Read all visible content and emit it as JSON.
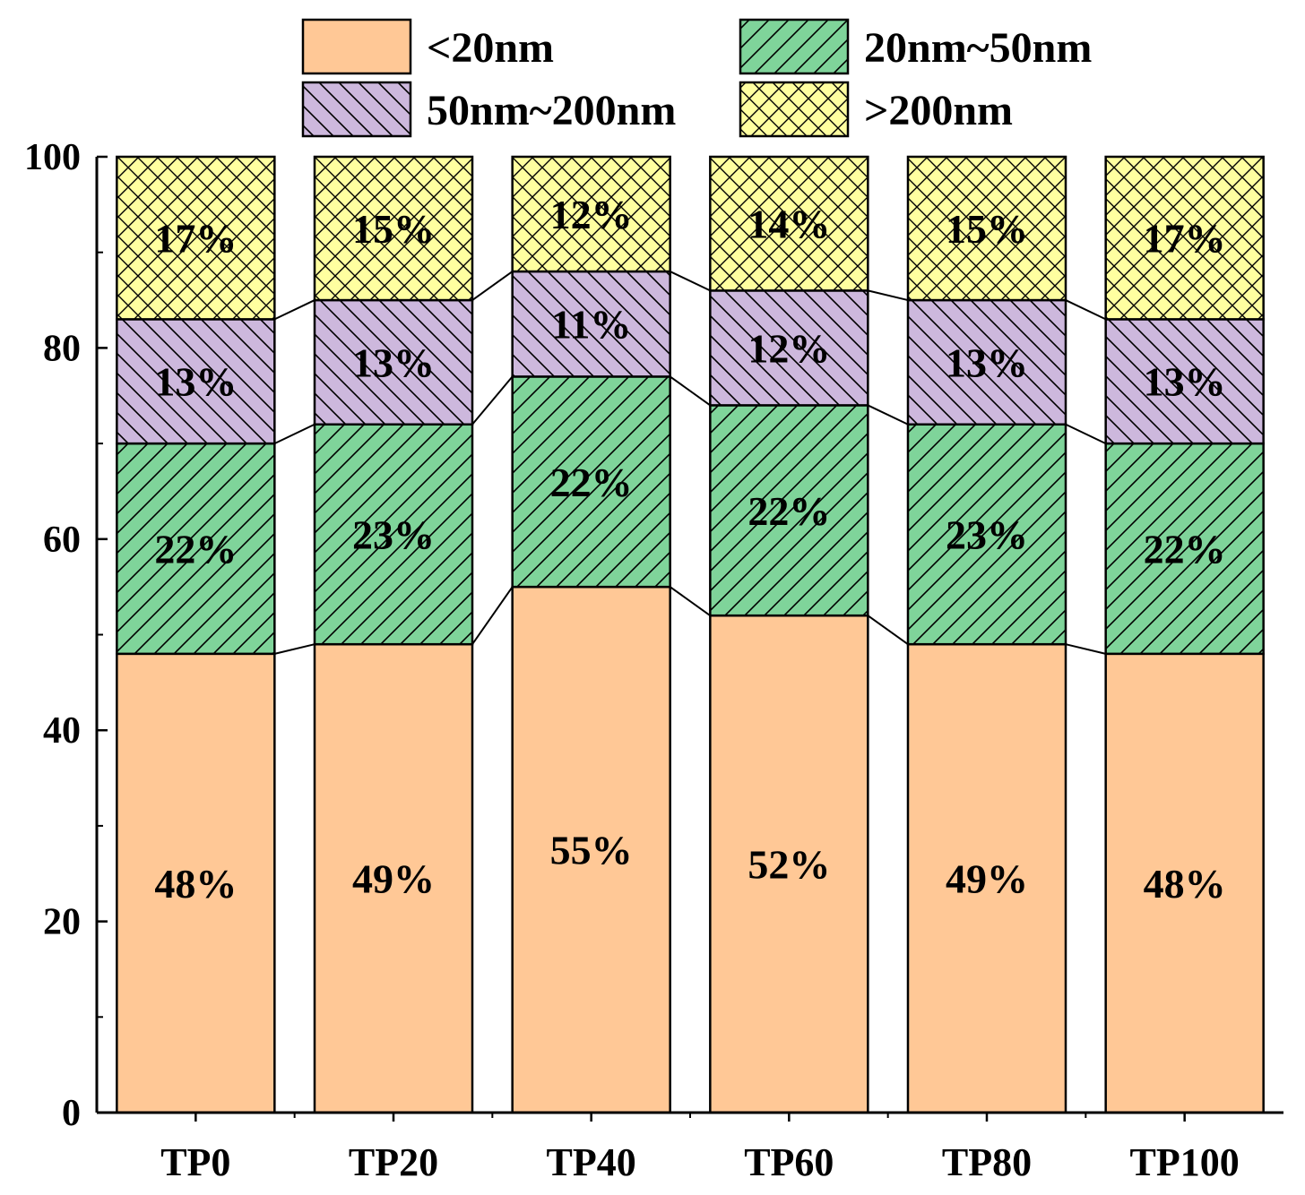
{
  "chart_data": {
    "type": "bar",
    "stacked": true,
    "title": "",
    "xlabel": "",
    "ylabel": "",
    "ylim": [
      0,
      100
    ],
    "yticks": [
      "0",
      "20",
      "40",
      "60",
      "80",
      "100"
    ],
    "categories": [
      "TP0",
      "TP20",
      "TP40",
      "TP60",
      "TP80",
      "TP100"
    ],
    "series": [
      {
        "name": "<20nm",
        "values": [
          48,
          49,
          55,
          52,
          49,
          48
        ],
        "labels": [
          "48%",
          "49%",
          "55%",
          "52%",
          "49%",
          "48%"
        ],
        "color": "#FFC896",
        "pattern": "none"
      },
      {
        "name": "20nm~50nm",
        "values": [
          22,
          23,
          22,
          22,
          23,
          22
        ],
        "labels": [
          "22%",
          "23%",
          "22%",
          "22%",
          "23%",
          "22%"
        ],
        "color": "#7FD49A",
        "pattern": "forward-diagonal"
      },
      {
        "name": "50nm~200nm",
        "values": [
          13,
          13,
          11,
          12,
          13,
          13
        ],
        "labels": [
          "13%",
          "13%",
          "11%",
          "12%",
          "13%",
          "13%"
        ],
        "color": "#CDB8DD",
        "pattern": "back-diagonal"
      },
      {
        "name": ">200nm",
        "values": [
          17,
          15,
          12,
          14,
          15,
          17
        ],
        "labels": [
          "17%",
          "15%",
          "12%",
          "14%",
          "15%",
          "17%"
        ],
        "color": "#FFFFA0",
        "pattern": "crosshatch"
      }
    ],
    "legend": {
      "position": "top",
      "columns": 2
    },
    "connector_lines": true,
    "grid": false
  }
}
